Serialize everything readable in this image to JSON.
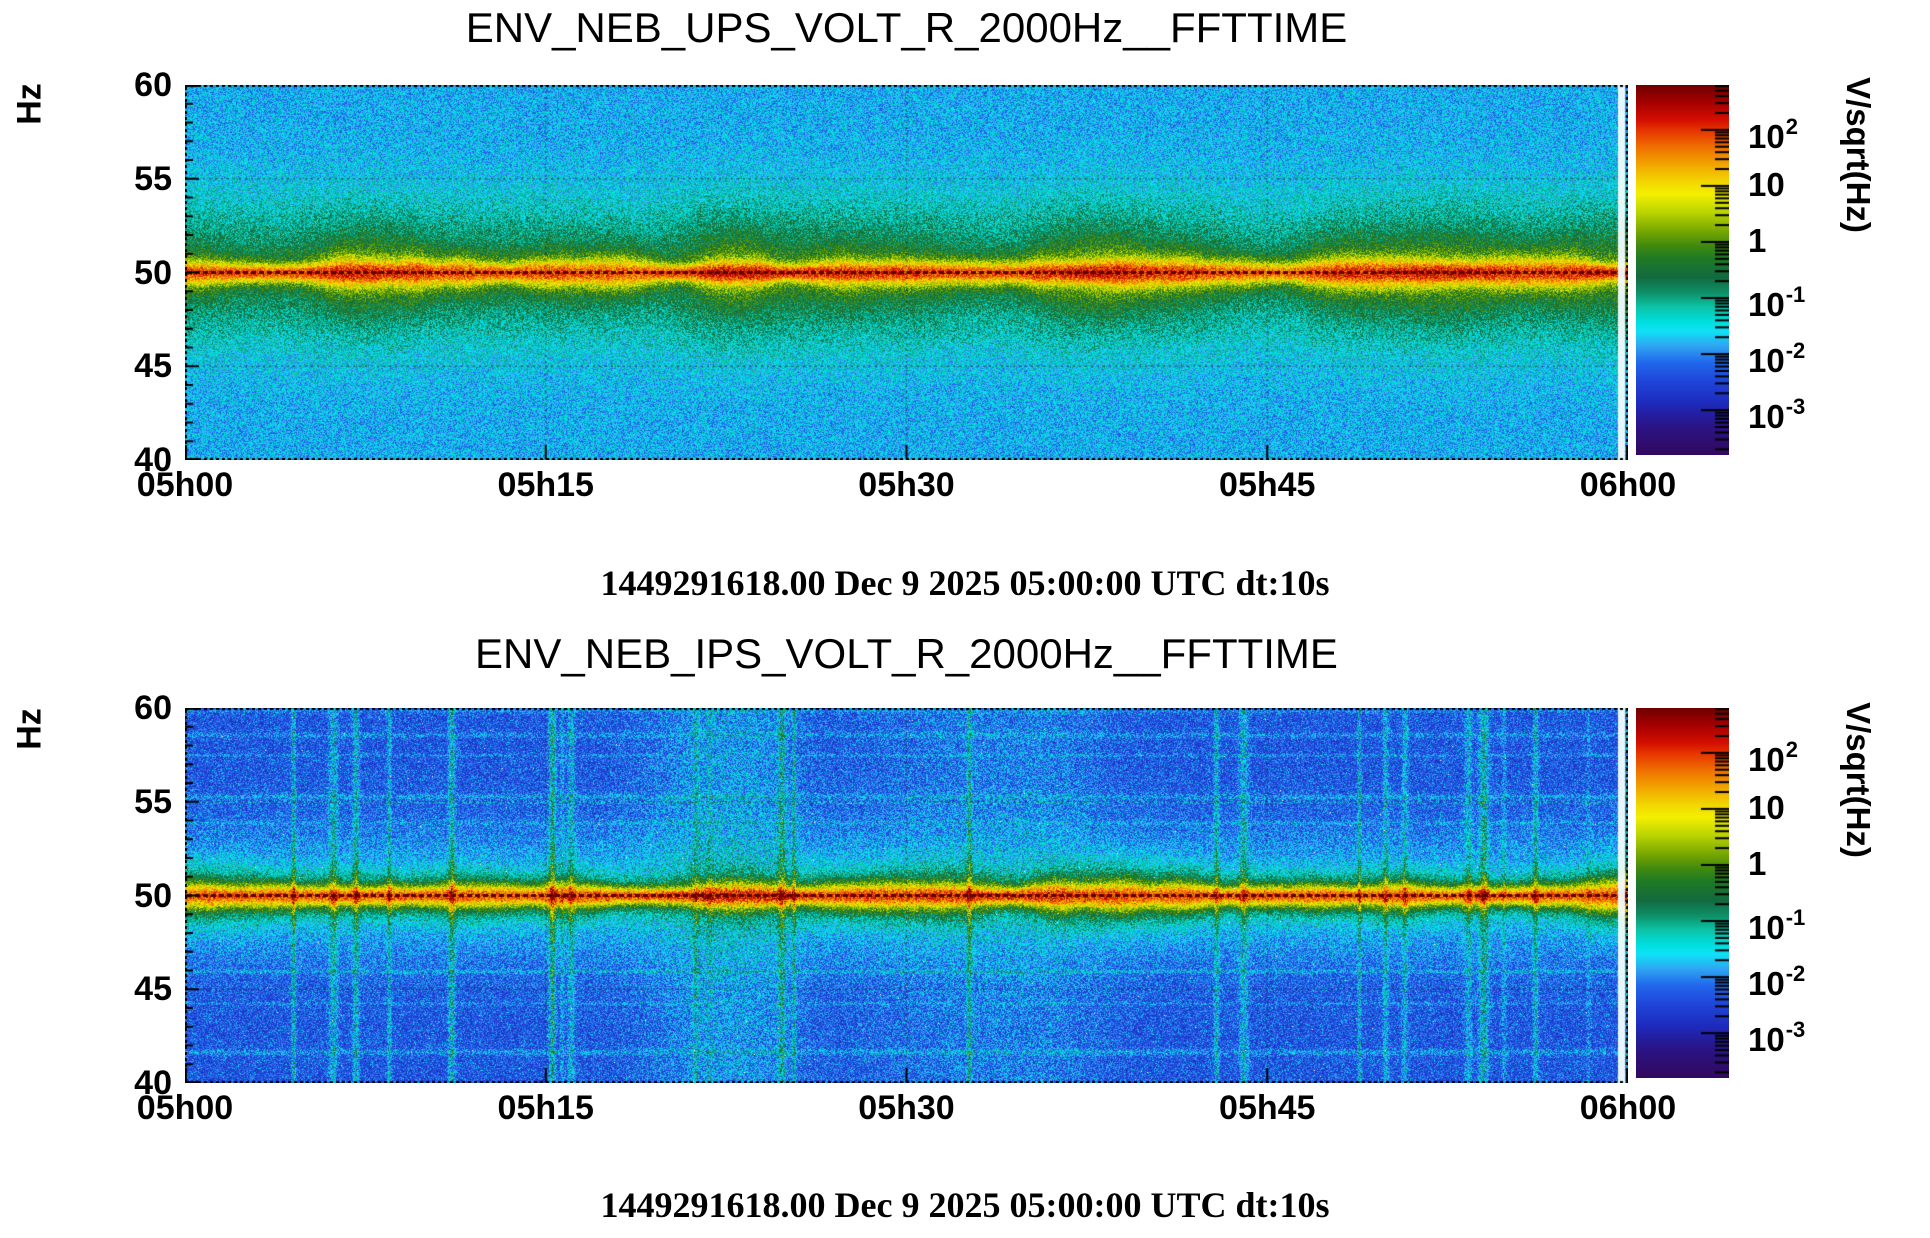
{
  "page": {
    "background_color": "#ffffff",
    "text_color": "#000000",
    "description": "Two FFT-time spectrograms (environmental monitoring of UPS/IPS voltage channels), 50 Hz mains line visible in both"
  },
  "palette": {
    "stops": [
      [
        0.0,
        "#6f0000"
      ],
      [
        0.045,
        "#a30000"
      ],
      [
        0.095,
        "#d40f00"
      ],
      [
        0.125,
        "#e83800"
      ],
      [
        0.175,
        "#f07800"
      ],
      [
        0.225,
        "#f2b000"
      ],
      [
        0.265,
        "#f2da00"
      ],
      [
        0.295,
        "#f4f000"
      ],
      [
        0.345,
        "#b9d400"
      ],
      [
        0.395,
        "#78a800"
      ],
      [
        0.435,
        "#3f8a10"
      ],
      [
        0.47,
        "#1f7a26"
      ],
      [
        0.52,
        "#136a40"
      ],
      [
        0.56,
        "#0e8f67"
      ],
      [
        0.6,
        "#0cc4a6"
      ],
      [
        0.64,
        "#00dfdf"
      ],
      [
        0.665,
        "#10e2f6"
      ],
      [
        0.705,
        "#2fa6f2"
      ],
      [
        0.75,
        "#2168ec"
      ],
      [
        0.8,
        "#1f46da"
      ],
      [
        0.86,
        "#1e2bbd"
      ],
      [
        0.92,
        "#2a1487"
      ],
      [
        1.0,
        "#33095e"
      ]
    ]
  },
  "chart_data": [
    {
      "type": "heatmap",
      "title": "ENV_NEB_UPS_VOLT_R_2000Hz__FFTTIME",
      "y_axis_title": "Hz",
      "y_tick_labels": [
        "60",
        "55",
        "50",
        "45",
        "40"
      ],
      "y_range_hz": [
        40,
        60
      ],
      "y_minor_tick_step_hz": 1,
      "x_tick_labels": [
        "05h00",
        "05h15",
        "05h30",
        "05h45",
        "06h00"
      ],
      "x_range": [
        "05h00",
        "06h00"
      ],
      "caption": "1449291618.00 Dec 9 2025 05:00:00 UTC dt:10s",
      "colorbar": {
        "title": "V/sqrt(Hz)",
        "ticks": [
          {
            "t": "10",
            "s": "2"
          },
          {
            "t": "10",
            "s": ""
          },
          {
            "t": "1",
            "s": ""
          },
          {
            "t": "10",
            "s": "-1"
          },
          {
            "t": "10",
            "s": "-2"
          },
          {
            "t": "10",
            "s": "-3"
          }
        ],
        "tick_exponents": [
          2,
          1,
          0,
          -1,
          -2,
          -3
        ],
        "range_log10": [
          -3.8,
          2.8
        ]
      },
      "features": {
        "mains_line_hz": 50,
        "mains_line_peak_log10": 2.0,
        "line_structure": "red core with dark-red dotted 50Hz gridline, yellow sheath, olive-green halo of varying width",
        "background_log10": -1.8,
        "background_texture": "cyan/blue speckle noise",
        "green_band": "teal-green elevated band within about 3 Hz of 50 Hz",
        "grid": "dotted black gridlines at 45/50/55 Hz and 05h15/05h30/05h45, dashed frame",
        "right_edge": "white column of missing data just before 06h00"
      },
      "render": {
        "seed": 20251209,
        "base": -1.8,
        "noise": 1.15,
        "band_amp": 1.25,
        "band_sigma": 2.7,
        "glow_amp": 0,
        "glow_sigma": 1,
        "line_amp": 2.0,
        "line_sigma": 0.4,
        "halo_amp": 0.55,
        "halo_sigma": 0.85,
        "streaks": false,
        "bright_speckle": 0
      }
    },
    {
      "type": "heatmap",
      "title": "ENV_NEB_IPS_VOLT_R_2000Hz__FFTTIME",
      "y_axis_title": "Hz",
      "y_tick_labels": [
        "60",
        "55",
        "50",
        "45",
        "40"
      ],
      "y_range_hz": [
        40,
        60
      ],
      "y_minor_tick_step_hz": 1,
      "x_tick_labels": [
        "05h00",
        "05h15",
        "05h30",
        "05h45",
        "06h00"
      ],
      "x_range": [
        "05h00",
        "06h00"
      ],
      "caption": "1449291618.00 Dec 9 2025 05:00:00 UTC dt:10s",
      "colorbar": {
        "title": "V/sqrt(Hz)",
        "ticks": [
          {
            "t": "10",
            "s": "2"
          },
          {
            "t": "10",
            "s": ""
          },
          {
            "t": "1",
            "s": ""
          },
          {
            "t": "10",
            "s": "-1"
          },
          {
            "t": "10",
            "s": "-2"
          },
          {
            "t": "10",
            "s": "-3"
          }
        ],
        "tick_exponents": [
          2,
          1,
          0,
          -1,
          -2,
          -3
        ],
        "range_log10": [
          -3.8,
          2.8
        ]
      },
      "features": {
        "mains_line_hz": 50,
        "mains_line_peak_log10": 2.0,
        "line_structure": "red core with dark-red dotted 50Hz gridline, yellow sheath, blobby green halo and cyan glow",
        "background_log10": -2.4,
        "background_texture": "darker blue speckle noise with bright cyan speckles and rare white dots",
        "streak_pattern": "light cyan/green vertical time streaks and horizontal frequency streaks forming a loose grid",
        "grid": "dotted black gridlines at 45/50/55 Hz and 05h15/05h30/05h45, dashed frame",
        "right_edge": "white column of missing data just before 06h00"
      },
      "render": {
        "seed": 414243,
        "base": -2.4,
        "noise": 1.0,
        "band_amp": 0,
        "band_sigma": 1,
        "glow_amp": 0.75,
        "glow_sigma": 2.3,
        "line_amp": 2.2,
        "line_sigma": 0.38,
        "halo_amp": 1.25,
        "halo_sigma": 0.8,
        "streaks": true,
        "bright_speckle": 0.55
      }
    }
  ]
}
